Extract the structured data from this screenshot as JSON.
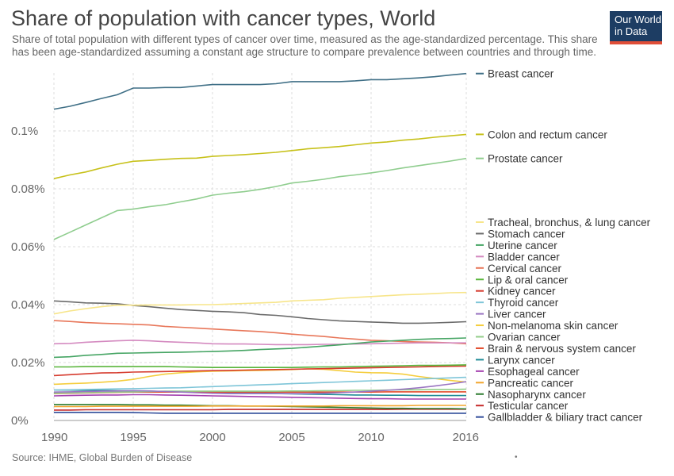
{
  "title": "Share of population with cancer types, World",
  "subtitle": "Share of total population with different types of cancer over time, measured as the age-standardized percentage. This share has been age-standardized assuming a constant age structure to compare prevalence between countries and through time.",
  "logo": {
    "line1": "Our World",
    "line2": "in Data"
  },
  "source": "Source: IHME, Global Burden of Disease",
  "footer_mark": "•",
  "chart_data": {
    "type": "line",
    "x": [
      1990,
      1991,
      1992,
      1993,
      1994,
      1995,
      1996,
      1997,
      1998,
      1999,
      2000,
      2001,
      2002,
      2003,
      2004,
      2005,
      2006,
      2007,
      2008,
      2009,
      2010,
      2011,
      2012,
      2013,
      2014,
      2015,
      2016
    ],
    "xticks": [
      1990,
      1995,
      2000,
      2005,
      2010,
      2016
    ],
    "yticks": [
      0,
      0.02,
      0.04,
      0.06,
      0.08,
      0.1
    ],
    "ytick_labels": [
      "0%",
      "0.02%",
      "0.04%",
      "0.06%",
      "0.08%",
      "0.1%"
    ],
    "xlim": [
      1990,
      2016
    ],
    "ylim": [
      0,
      0.12
    ],
    "grid": true,
    "legend_placement": "right",
    "series": [
      {
        "name": "Breast cancer",
        "color": "#3f6f86",
        "values": [
          0.1075,
          0.1085,
          0.1098,
          0.1112,
          0.1125,
          0.1148,
          0.1148,
          0.115,
          0.115,
          0.1155,
          0.116,
          0.116,
          0.116,
          0.116,
          0.1163,
          0.117,
          0.117,
          0.117,
          0.117,
          0.1173,
          0.1177,
          0.1177,
          0.118,
          0.1183,
          0.1187,
          0.1193,
          0.1198
        ]
      },
      {
        "name": "Colon and rectum cancer",
        "color": "#c7c11a",
        "values": [
          0.0835,
          0.0848,
          0.0858,
          0.0872,
          0.0885,
          0.0895,
          0.0898,
          0.0902,
          0.0905,
          0.0906,
          0.0912,
          0.0915,
          0.0918,
          0.0922,
          0.0926,
          0.0932,
          0.0938,
          0.0942,
          0.0946,
          0.0952,
          0.0958,
          0.0962,
          0.0968,
          0.0972,
          0.0978,
          0.0983,
          0.0988
        ]
      },
      {
        "name": "Prostate cancer",
        "color": "#8fcd8e",
        "values": [
          0.0625,
          0.065,
          0.0675,
          0.07,
          0.0725,
          0.073,
          0.0738,
          0.0745,
          0.0755,
          0.0765,
          0.0778,
          0.0785,
          0.079,
          0.0798,
          0.0808,
          0.082,
          0.0826,
          0.0833,
          0.0842,
          0.0848,
          0.0855,
          0.0863,
          0.0872,
          0.088,
          0.0888,
          0.0896,
          0.0905
        ]
      },
      {
        "name": "Tracheal, bronchus, & lung cancer",
        "color": "#f7e58a",
        "values": [
          0.0368,
          0.0378,
          0.0386,
          0.0393,
          0.0398,
          0.0398,
          0.0399,
          0.0399,
          0.0399,
          0.04,
          0.04,
          0.0402,
          0.0404,
          0.0406,
          0.0408,
          0.0413,
          0.0415,
          0.0417,
          0.0422,
          0.0425,
          0.0428,
          0.0431,
          0.0434,
          0.0436,
          0.0438,
          0.0441,
          0.0442
        ]
      },
      {
        "name": "Stomach cancer",
        "color": "#6b6b6b",
        "values": [
          0.0413,
          0.041,
          0.0406,
          0.0405,
          0.0403,
          0.0397,
          0.0393,
          0.0388,
          0.0383,
          0.038,
          0.0377,
          0.0375,
          0.0372,
          0.0366,
          0.0363,
          0.0358,
          0.0352,
          0.0348,
          0.0344,
          0.0342,
          0.034,
          0.0338,
          0.0336,
          0.0336,
          0.0337,
          0.0339,
          0.0341
        ]
      },
      {
        "name": "Uterine cancer",
        "color": "#46a564",
        "values": [
          0.0218,
          0.022,
          0.0225,
          0.0228,
          0.0232,
          0.0233,
          0.0234,
          0.0235,
          0.0236,
          0.0237,
          0.0238,
          0.024,
          0.0242,
          0.0245,
          0.0247,
          0.0249,
          0.0253,
          0.0257,
          0.0261,
          0.0266,
          0.0271,
          0.0274,
          0.0277,
          0.028,
          0.0282,
          0.0283,
          0.0285
        ]
      },
      {
        "name": "Bladder cancer",
        "color": "#d48ac0",
        "values": [
          0.0265,
          0.0266,
          0.027,
          0.0273,
          0.0275,
          0.0277,
          0.0275,
          0.0272,
          0.027,
          0.0268,
          0.0265,
          0.0264,
          0.0264,
          0.0263,
          0.0262,
          0.0262,
          0.0262,
          0.0263,
          0.0263,
          0.0264,
          0.0265,
          0.0266,
          0.0267,
          0.0268,
          0.0268,
          0.0268,
          0.0268
        ]
      },
      {
        "name": "Cervical cancer",
        "color": "#e8775a",
        "values": [
          0.0345,
          0.0342,
          0.0338,
          0.0336,
          0.0334,
          0.0332,
          0.033,
          0.0325,
          0.0322,
          0.0319,
          0.0316,
          0.0313,
          0.031,
          0.0307,
          0.0303,
          0.0298,
          0.0294,
          0.029,
          0.0285,
          0.0281,
          0.0277,
          0.0275,
          0.0273,
          0.0271,
          0.027,
          0.0268,
          0.0265
        ]
      },
      {
        "name": "Lip & oral cancer",
        "color": "#59b53b",
        "values": [
          0.0185,
          0.0185,
          0.0186,
          0.0186,
          0.0186,
          0.0186,
          0.0186,
          0.0186,
          0.0185,
          0.0184,
          0.0183,
          0.0183,
          0.0183,
          0.0183,
          0.0183,
          0.0183,
          0.0184,
          0.0185,
          0.0185,
          0.0186,
          0.0187,
          0.0188,
          0.0189,
          0.019,
          0.019,
          0.0191,
          0.0192
        ]
      },
      {
        "name": "Kidney cancer",
        "color": "#d63c2f",
        "values": [
          0.0155,
          0.0158,
          0.0161,
          0.0164,
          0.0165,
          0.0167,
          0.0168,
          0.0169,
          0.017,
          0.0171,
          0.0172,
          0.0173,
          0.0174,
          0.0175,
          0.0176,
          0.0177,
          0.0178,
          0.0179,
          0.018,
          0.0181,
          0.0182,
          0.0183,
          0.0184,
          0.0185,
          0.0186,
          0.0187,
          0.0188
        ]
      },
      {
        "name": "Thyroid cancer",
        "color": "#7ec5d8",
        "values": [
          0.0105,
          0.0106,
          0.0107,
          0.0108,
          0.0109,
          0.011,
          0.0111,
          0.0112,
          0.0113,
          0.0115,
          0.0117,
          0.0119,
          0.0121,
          0.0123,
          0.0125,
          0.0127,
          0.0129,
          0.0131,
          0.0133,
          0.0135,
          0.0137,
          0.0139,
          0.0141,
          0.0143,
          0.0145,
          0.0147,
          0.0149
        ]
      },
      {
        "name": "Liver cancer",
        "color": "#9a74c2",
        "values": [
          0.0098,
          0.0099,
          0.01,
          0.0101,
          0.0102,
          0.0103,
          0.0102,
          0.01,
          0.0098,
          0.0096,
          0.0094,
          0.0093,
          0.0093,
          0.0093,
          0.0093,
          0.0093,
          0.0093,
          0.0094,
          0.0096,
          0.0098,
          0.0101,
          0.0104,
          0.0108,
          0.0113,
          0.0119,
          0.0126,
          0.0134
        ]
      },
      {
        "name": "Non-melanoma skin cancer",
        "color": "#f5cd3d",
        "values": [
          0.0125,
          0.0127,
          0.0129,
          0.0132,
          0.0136,
          0.0142,
          0.0152,
          0.016,
          0.0165,
          0.0168,
          0.017,
          0.0171,
          0.0172,
          0.0173,
          0.0174,
          0.0176,
          0.0178,
          0.0177,
          0.0172,
          0.0167,
          0.0165,
          0.0164,
          0.016,
          0.0152,
          0.0145,
          0.0138,
          0.0133
        ]
      },
      {
        "name": "Ovarian cancer",
        "color": "#93ce8a",
        "values": [
          0.0094,
          0.0095,
          0.0096,
          0.0097,
          0.0098,
          0.0099,
          0.01,
          0.0101,
          0.0101,
          0.0101,
          0.0101,
          0.0101,
          0.0101,
          0.0101,
          0.0101,
          0.0102,
          0.0102,
          0.0103,
          0.0103,
          0.0104,
          0.0104,
          0.0105,
          0.0106,
          0.0106,
          0.0107,
          0.0107,
          0.0108
        ]
      },
      {
        "name": "Brain & nervous system cancer",
        "color": "#e24b2c",
        "values": [
          0.0093,
          0.0094,
          0.0095,
          0.0096,
          0.0097,
          0.0098,
          0.0098,
          0.0098,
          0.0098,
          0.0098,
          0.0098,
          0.0098,
          0.0098,
          0.0098,
          0.0098,
          0.0098,
          0.0098,
          0.0098,
          0.0098,
          0.0098,
          0.0098,
          0.0099,
          0.0099,
          0.0099,
          0.0099,
          0.0099,
          0.0099
        ]
      },
      {
        "name": "Larynx cancer",
        "color": "#1f8b96",
        "values": [
          0.0105,
          0.0105,
          0.0104,
          0.0104,
          0.0103,
          0.0102,
          0.0101,
          0.01,
          0.0099,
          0.0098,
          0.0097,
          0.0096,
          0.0095,
          0.0094,
          0.0093,
          0.0092,
          0.0091,
          0.009,
          0.0089,
          0.0088,
          0.0088,
          0.0087,
          0.0087,
          0.0086,
          0.0086,
          0.0086,
          0.0086
        ]
      },
      {
        "name": "Esophageal cancer",
        "color": "#a441b0",
        "values": [
          0.0085,
          0.0086,
          0.0087,
          0.0088,
          0.0088,
          0.0089,
          0.0089,
          0.0088,
          0.0087,
          0.0086,
          0.0085,
          0.0084,
          0.0083,
          0.0082,
          0.0081,
          0.008,
          0.0079,
          0.0078,
          0.0077,
          0.0076,
          0.0075,
          0.0075,
          0.0074,
          0.0074,
          0.0074,
          0.0074,
          0.0074
        ]
      },
      {
        "name": "Pancreatic cancer",
        "color": "#f2a52c",
        "values": [
          0.0048,
          0.0048,
          0.0048,
          0.0049,
          0.0049,
          0.0049,
          0.0049,
          0.0049,
          0.0049,
          0.0049,
          0.005,
          0.005,
          0.005,
          0.005,
          0.005,
          0.005,
          0.005,
          0.005,
          0.0051,
          0.0051,
          0.0051,
          0.0051,
          0.0051,
          0.0052,
          0.0052,
          0.0052,
          0.0052
        ]
      },
      {
        "name": "Nasopharynx cancer",
        "color": "#2c7c2f",
        "values": [
          0.0055,
          0.0055,
          0.0055,
          0.0055,
          0.0055,
          0.0054,
          0.0054,
          0.0053,
          0.0053,
          0.0052,
          0.0051,
          0.0051,
          0.005,
          0.005,
          0.0049,
          0.0048,
          0.0047,
          0.0046,
          0.0045,
          0.0044,
          0.0043,
          0.0042,
          0.0042,
          0.0041,
          0.0041,
          0.0041,
          0.004
        ]
      },
      {
        "name": "Testicular cancer",
        "color": "#c62a2a",
        "values": [
          0.0036,
          0.0036,
          0.0037,
          0.0037,
          0.0037,
          0.0037,
          0.0037,
          0.0037,
          0.0037,
          0.0037,
          0.0037,
          0.0038,
          0.0038,
          0.0038,
          0.0038,
          0.0038,
          0.0038,
          0.0038,
          0.0038,
          0.0038,
          0.0038,
          0.0038,
          0.0039,
          0.0039,
          0.0039,
          0.0039,
          0.0039
        ]
      },
      {
        "name": "Gallbladder & biliary tract cancer",
        "color": "#2f4c9a",
        "values": [
          0.0028,
          0.0028,
          0.0028,
          0.0028,
          0.0028,
          0.0027,
          0.0026,
          0.0025,
          0.0025,
          0.0025,
          0.0025,
          0.0025,
          0.0025,
          0.0025,
          0.0025,
          0.0025,
          0.0025,
          0.0025,
          0.0025,
          0.0025,
          0.0025,
          0.0025,
          0.0025,
          0.0025,
          0.0025,
          0.0025,
          0.0025
        ]
      }
    ]
  }
}
